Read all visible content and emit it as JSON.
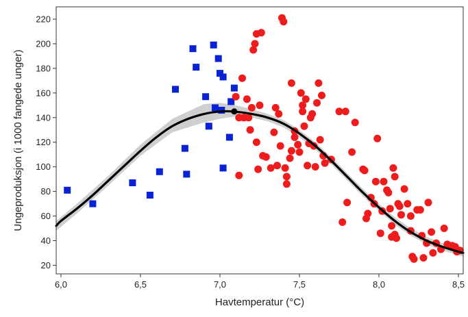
{
  "chart_data": {
    "type": "scatter",
    "title": "",
    "xlabel": "Havtemperatur (°C)",
    "ylabel": "Ungeproduksjon (i 1000 fangede unger)",
    "xlim": [
      5.97,
      8.53
    ],
    "ylim": [
      13,
      230
    ],
    "xticks": [
      6.0,
      6.5,
      7.0,
      7.5,
      8.0,
      8.5
    ],
    "xtick_labels": [
      "6,0",
      "6,5",
      "7,0",
      "7,5",
      "8,0",
      "8,5"
    ],
    "yticks": [
      20,
      40,
      60,
      80,
      100,
      120,
      140,
      160,
      180,
      200,
      220
    ],
    "ytick_labels": [
      "20",
      "40",
      "60",
      "80",
      "100",
      "120",
      "140",
      "160",
      "180",
      "200",
      "220"
    ],
    "grid": false,
    "legend": "none",
    "colors": {
      "blue_points": "#0a22d6",
      "red_points": "#ee1c1c",
      "fit_line": "#000000",
      "confidence_band": "#cfcfcf"
    },
    "series": [
      {
        "marker": "square",
        "color": "#0a22d6",
        "points": [
          [
            6.04,
            81
          ],
          [
            6.2,
            70
          ],
          [
            6.45,
            87
          ],
          [
            6.56,
            77
          ],
          [
            6.62,
            96
          ],
          [
            6.72,
            163
          ],
          [
            6.78,
            115
          ],
          [
            6.79,
            94
          ],
          [
            6.83,
            196
          ],
          [
            6.85,
            181
          ],
          [
            6.91,
            157
          ],
          [
            6.93,
            133
          ],
          [
            6.96,
            199
          ],
          [
            6.97,
            148
          ],
          [
            6.99,
            188
          ],
          [
            7.0,
            176
          ],
          [
            7.01,
            146
          ],
          [
            7.02,
            173
          ],
          [
            7.02,
            99
          ],
          [
            7.06,
            124
          ],
          [
            7.07,
            153
          ],
          [
            7.09,
            164
          ]
        ]
      },
      {
        "marker": "circle",
        "color": "#ee1c1c",
        "points": [
          [
            7.1,
            157
          ],
          [
            7.12,
            140
          ],
          [
            7.12,
            93
          ],
          [
            7.14,
            172
          ],
          [
            7.15,
            140
          ],
          [
            7.17,
            155
          ],
          [
            7.18,
            140
          ],
          [
            7.19,
            130
          ],
          [
            7.2,
            148
          ],
          [
            7.21,
            195
          ],
          [
            7.22,
            200
          ],
          [
            7.23,
            208
          ],
          [
            7.23,
            120
          ],
          [
            7.24,
            98
          ],
          [
            7.25,
            150
          ],
          [
            7.26,
            209
          ],
          [
            7.27,
            109
          ],
          [
            7.29,
            108
          ],
          [
            7.32,
            99
          ],
          [
            7.34,
            128
          ],
          [
            7.35,
            148
          ],
          [
            7.36,
            101
          ],
          [
            7.37,
            143
          ],
          [
            7.38,
            117
          ],
          [
            7.39,
            221
          ],
          [
            7.4,
            218
          ],
          [
            7.41,
            99
          ],
          [
            7.42,
            92
          ],
          [
            7.42,
            86
          ],
          [
            7.44,
            107
          ],
          [
            7.45,
            168
          ],
          [
            7.45,
            113
          ],
          [
            7.47,
            129
          ],
          [
            7.47,
            124
          ],
          [
            7.49,
            118
          ],
          [
            7.5,
            112
          ],
          [
            7.51,
            160
          ],
          [
            7.52,
            145
          ],
          [
            7.52,
            150
          ],
          [
            7.53,
            133
          ],
          [
            7.54,
            155
          ],
          [
            7.55,
            101
          ],
          [
            7.56,
            119
          ],
          [
            7.57,
            140
          ],
          [
            7.58,
            143
          ],
          [
            7.59,
            117
          ],
          [
            7.6,
            100
          ],
          [
            7.61,
            152
          ],
          [
            7.62,
            168
          ],
          [
            7.63,
            122
          ],
          [
            7.64,
            158
          ],
          [
            7.65,
            109
          ],
          [
            7.66,
            103
          ],
          [
            7.7,
            106
          ],
          [
            7.75,
            145
          ],
          [
            7.77,
            55
          ],
          [
            7.79,
            145
          ],
          [
            7.8,
            71
          ],
          [
            7.83,
            112
          ],
          [
            7.85,
            136
          ],
          [
            7.9,
            98
          ],
          [
            7.91,
            97
          ],
          [
            7.92,
            58
          ],
          [
            7.93,
            62
          ],
          [
            7.95,
            75
          ],
          [
            7.97,
            70
          ],
          [
            7.98,
            88
          ],
          [
            7.99,
            123
          ],
          [
            8.01,
            46
          ],
          [
            8.02,
            64
          ],
          [
            8.03,
            88
          ],
          [
            8.05,
            81
          ],
          [
            8.06,
            79
          ],
          [
            8.07,
            66
          ],
          [
            8.08,
            52
          ],
          [
            8.08,
            43
          ],
          [
            8.09,
            99
          ],
          [
            8.1,
            45
          ],
          [
            8.1,
            92
          ],
          [
            8.11,
            42
          ],
          [
            8.12,
            70
          ],
          [
            8.13,
            68
          ],
          [
            8.14,
            61
          ],
          [
            8.16,
            82
          ],
          [
            8.18,
            70
          ],
          [
            8.2,
            48
          ],
          [
            8.2,
            60
          ],
          [
            8.21,
            27
          ],
          [
            8.22,
            25
          ],
          [
            8.24,
            65
          ],
          [
            8.26,
            65
          ],
          [
            8.27,
            44
          ],
          [
            8.28,
            26
          ],
          [
            8.3,
            38
          ],
          [
            8.31,
            71
          ],
          [
            8.33,
            47
          ],
          [
            8.34,
            30
          ],
          [
            8.36,
            38
          ],
          [
            8.39,
            33
          ],
          [
            8.41,
            50
          ],
          [
            8.43,
            37
          ],
          [
            8.46,
            36
          ],
          [
            8.48,
            35
          ],
          [
            8.49,
            31
          ],
          [
            8.51,
            32
          ]
        ]
      }
    ],
    "fit": {
      "style": "line",
      "points": [
        [
          5.97,
          52
        ],
        [
          6.0,
          56
        ],
        [
          6.1,
          66
        ],
        [
          6.2,
          77
        ],
        [
          6.3,
          89
        ],
        [
          6.4,
          101
        ],
        [
          6.5,
          113
        ],
        [
          6.6,
          124
        ],
        [
          6.7,
          133
        ],
        [
          6.8,
          139
        ],
        [
          6.9,
          143
        ],
        [
          7.0,
          145
        ],
        [
          7.08,
          145
        ],
        [
          7.2,
          143
        ],
        [
          7.3,
          140
        ],
        [
          7.4,
          135
        ],
        [
          7.5,
          127
        ],
        [
          7.6,
          117
        ],
        [
          7.7,
          105
        ],
        [
          7.8,
          92
        ],
        [
          7.9,
          79
        ],
        [
          8.0,
          67
        ],
        [
          8.1,
          56
        ],
        [
          8.2,
          47
        ],
        [
          8.3,
          40
        ],
        [
          8.4,
          35
        ],
        [
          8.5,
          31
        ],
        [
          8.53,
          30
        ]
      ],
      "peak": [
        7.09,
        145
      ]
    },
    "confidence_band": [
      [
        5.97,
        48,
        56
      ],
      [
        6.1,
        62,
        70
      ],
      [
        6.3,
        85,
        93
      ],
      [
        6.5,
        109,
        118
      ],
      [
        6.7,
        128,
        139
      ],
      [
        6.9,
        136,
        151
      ],
      [
        7.0,
        139,
        152
      ],
      [
        7.1,
        141,
        150
      ],
      [
        7.2,
        140,
        147
      ],
      [
        7.3,
        137,
        143
      ],
      [
        7.4,
        132,
        138
      ],
      [
        7.5,
        124,
        130
      ],
      [
        7.6,
        114,
        120
      ],
      [
        7.7,
        102,
        108
      ],
      [
        7.8,
        89,
        95
      ],
      [
        7.9,
        76,
        82
      ],
      [
        8.0,
        64,
        70
      ],
      [
        8.1,
        53,
        59
      ],
      [
        8.2,
        44,
        50
      ],
      [
        8.3,
        37,
        43
      ],
      [
        8.4,
        32,
        38
      ],
      [
        8.53,
        27,
        33
      ]
    ]
  }
}
